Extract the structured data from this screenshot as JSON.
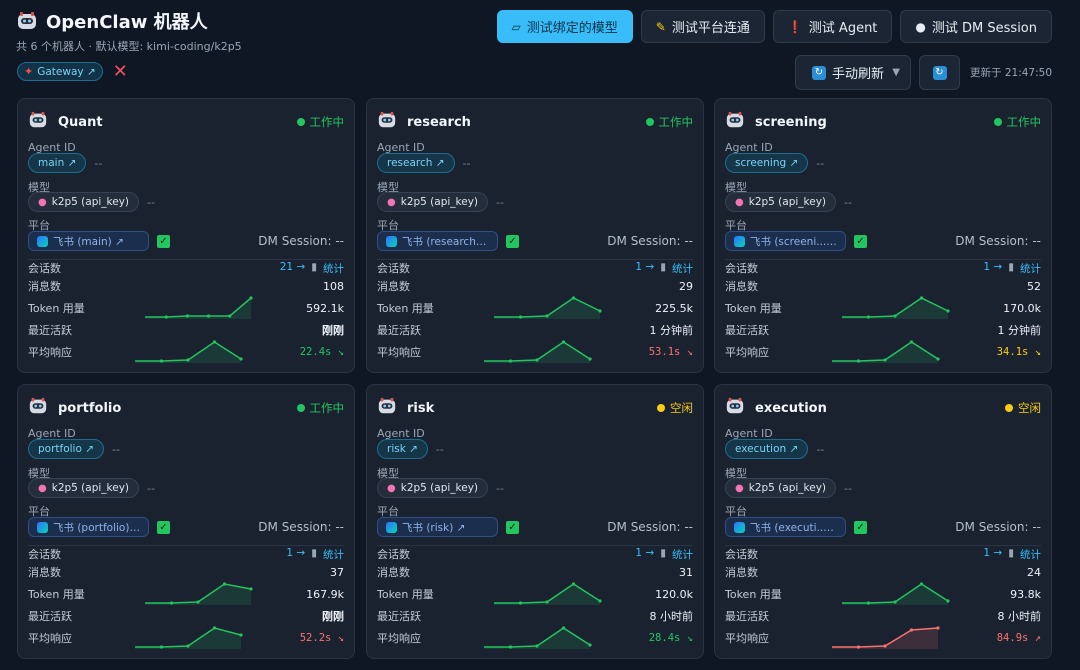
{
  "app": {
    "title": "OpenClaw 机器人",
    "subtitle": "共 6 个机器人 · 默认模型: kimi-coding/k2p5",
    "gateway_label": "Gateway ↗",
    "close_glyph": "✕"
  },
  "toolbar": {
    "test_bound_model": "测试绑定的模型",
    "test_platform": "测试平台连通",
    "test_agent": "测试 Agent",
    "test_dm": "测试 DM Session",
    "refresh_mode": "手动刷新",
    "updated": "更新于 21:47:50"
  },
  "labels": {
    "agent_id": "Agent ID",
    "model": "模型",
    "platform": "平台",
    "sessions": "会话数",
    "messages": "消息数",
    "tokens": "Token 用量",
    "last_active": "最近活跃",
    "avg_response": "平均响应",
    "stats_link": "统计",
    "dash": "--"
  },
  "colors": {
    "accent": "#38bdf8",
    "green": "#22c55e",
    "red": "#f87171",
    "yellow": "#facc15"
  },
  "agents": [
    {
      "name": "Quant",
      "status": "工作中",
      "status_kind": "working",
      "agent_id": "main ↗",
      "model": "k2p5 (api_key)",
      "platform": "飞书 (main) ↗",
      "dm": "DM Session: --",
      "sessions": "21 →",
      "messages": "108",
      "tokens": "592.1k",
      "last_active": "刚刚",
      "last_active_strong": true,
      "response": "22.4s ↘",
      "response_kind": "good",
      "token_spark": [
        0,
        0,
        0.05,
        0.05,
        0.05,
        0.95
      ],
      "resp_spark": [
        0,
        0,
        0.05,
        0.95,
        0.1
      ],
      "resp_spark_color": "#22c55e"
    },
    {
      "name": "research",
      "status": "工作中",
      "status_kind": "working",
      "agent_id": "research ↗",
      "model": "k2p5 (api_key)",
      "platform": "飞书 (research) ↗",
      "dm": "DM Session: --",
      "sessions": "1 →",
      "messages": "29",
      "tokens": "225.5k",
      "last_active": "1 分钟前",
      "last_active_strong": false,
      "response": "53.1s ↘",
      "response_kind": "bad",
      "token_spark": [
        0,
        0,
        0.05,
        0.95,
        0.3
      ],
      "resp_spark": [
        0,
        0,
        0.05,
        0.95,
        0.1
      ],
      "resp_spark_color": "#22c55e"
    },
    {
      "name": "screening",
      "status": "工作中",
      "status_kind": "working",
      "agent_id": "screening ↗",
      "model": "k2p5 (api_key)",
      "platform": "飞书 (screeni... ↗",
      "dm": "DM Session: --",
      "sessions": "1 →",
      "messages": "52",
      "tokens": "170.0k",
      "last_active": "1 分钟前",
      "last_active_strong": false,
      "response": "34.1s ↘",
      "response_kind": "mid",
      "token_spark": [
        0,
        0,
        0.05,
        0.95,
        0.3
      ],
      "resp_spark": [
        0,
        0,
        0.05,
        0.95,
        0.1
      ],
      "resp_spark_color": "#22c55e"
    },
    {
      "name": "portfolio",
      "status": "工作中",
      "status_kind": "working",
      "agent_id": "portfolio ↗",
      "model": "k2p5 (api_key)",
      "platform": "飞书 (portfolio) ↗",
      "dm": "DM Session: --",
      "sessions": "1 →",
      "messages": "37",
      "tokens": "167.9k",
      "last_active": "刚刚",
      "last_active_strong": true,
      "response": "52.2s ↘",
      "response_kind": "bad",
      "token_spark": [
        0,
        0,
        0.05,
        0.95,
        0.7
      ],
      "resp_spark": [
        0,
        0,
        0.05,
        0.95,
        0.6
      ],
      "resp_spark_color": "#22c55e"
    },
    {
      "name": "risk",
      "status": "空闲",
      "status_kind": "idle",
      "agent_id": "risk ↗",
      "model": "k2p5 (api_key)",
      "platform": "飞书 (risk) ↗",
      "dm": "DM Session: --",
      "sessions": "1 →",
      "messages": "31",
      "tokens": "120.0k",
      "last_active": "8 小时前",
      "last_active_strong": false,
      "response": "28.4s ↘",
      "response_kind": "good",
      "token_spark": [
        0,
        0,
        0.05,
        0.95,
        0.1
      ],
      "resp_spark": [
        0,
        0,
        0.05,
        0.95,
        0.1
      ],
      "resp_spark_color": "#22c55e"
    },
    {
      "name": "execution",
      "status": "空闲",
      "status_kind": "idle",
      "agent_id": "execution ↗",
      "model": "k2p5 (api_key)",
      "platform": "飞书 (executi... ↗",
      "dm": "DM Session: --",
      "sessions": "1 →",
      "messages": "24",
      "tokens": "93.8k",
      "last_active": "8 小时前",
      "last_active_strong": false,
      "response": "84.9s ↗",
      "response_kind": "bad",
      "token_spark": [
        0,
        0,
        0.05,
        0.95,
        0.1
      ],
      "resp_spark": [
        0,
        0,
        0.05,
        0.85,
        0.95
      ],
      "resp_spark_color": "#f87171"
    }
  ]
}
